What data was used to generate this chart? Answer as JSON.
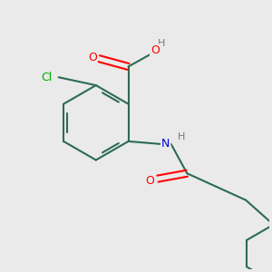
{
  "background_color": "#eaeaea",
  "bond_color": "#2d6b52",
  "atom_colors": {
    "O": "#ff0000",
    "N": "#0000cc",
    "Cl": "#00aa00",
    "H": "#777777",
    "C": "#2d6b52"
  },
  "figsize": [
    3.0,
    3.0
  ],
  "dpi": 100,
  "bond_lw": 1.5,
  "font_size": 9
}
